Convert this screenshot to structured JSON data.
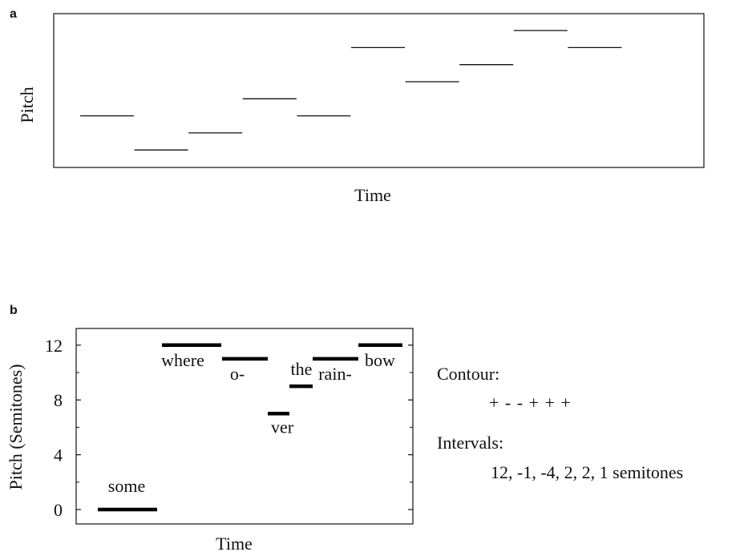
{
  "panel_a": {
    "label": "a",
    "xlabel": "Time",
    "ylabel": "Pitch",
    "notes": [
      {
        "t": 0,
        "pitch": 3
      },
      {
        "t": 1,
        "pitch": 1
      },
      {
        "t": 2,
        "pitch": 2
      },
      {
        "t": 3,
        "pitch": 4
      },
      {
        "t": 4,
        "pitch": 3
      },
      {
        "t": 5,
        "pitch": 7
      },
      {
        "t": 6,
        "pitch": 5
      },
      {
        "t": 7,
        "pitch": 6
      },
      {
        "t": 8,
        "pitch": 8
      },
      {
        "t": 9,
        "pitch": 7
      }
    ]
  },
  "panel_b": {
    "label": "b",
    "xlabel": "Time",
    "ylabel": "Pitch (Semitones)",
    "yticks": [
      "0",
      "4",
      "8",
      "12"
    ],
    "contour_title": "Contour:",
    "contour_value": "+ - - + + +",
    "intervals_title": "Intervals:",
    "intervals_value": "12, -1, -4, 2, 2, 1 semitones"
  },
  "chart_data": [
    {
      "type": "line",
      "title": "",
      "xlabel": "Time",
      "ylabel": "Pitch",
      "grid": false,
      "series": [
        {
          "x": [
            0,
            1,
            2,
            3,
            4,
            5,
            6,
            7,
            8,
            9
          ],
          "y": [
            3,
            1,
            2,
            4,
            3,
            7,
            5,
            6,
            8,
            7
          ]
        }
      ]
    },
    {
      "type": "line",
      "title": "",
      "xlabel": "Time",
      "ylabel": "Pitch (Semitones)",
      "ylim": [
        -1,
        13
      ],
      "grid": false,
      "categories": [
        "some",
        "where",
        "o-",
        "ver",
        "the",
        "rain-",
        "bow"
      ],
      "series": [
        {
          "values": [
            0,
            12,
            11,
            7,
            9,
            11,
            12
          ]
        }
      ]
    }
  ]
}
